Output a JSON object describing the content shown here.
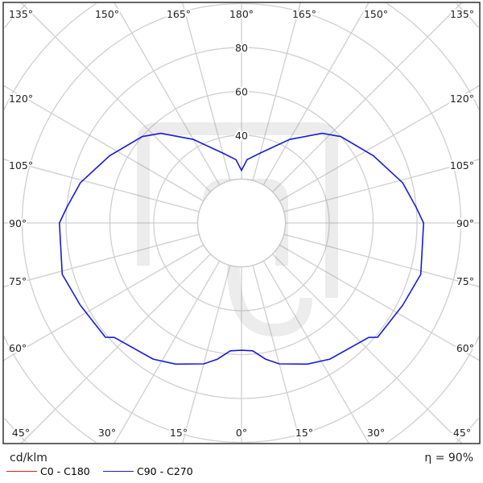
{
  "chart_data": {
    "type": "polar-line",
    "unit_label": "cd/klm",
    "efficiency_label": "η = 90%",
    "radial_ticks": [
      40,
      60,
      80
    ],
    "radial_grid": [
      20,
      40,
      60,
      80,
      100,
      120,
      140
    ],
    "angle_step_deg": 15,
    "top_labels": [
      "135°",
      "150°",
      "165°",
      "180°",
      "165°",
      "150°",
      "135°"
    ],
    "bottom_labels": [
      "45°",
      "30°",
      "15°",
      "0°",
      "15°",
      "30°",
      "45°"
    ],
    "left_labels": [
      "120°",
      "105°",
      "90°",
      "75°",
      "60°"
    ],
    "right_labels": [
      "120°",
      "105°",
      "90°",
      "75°",
      "60°"
    ],
    "legend": [
      {
        "name": "C0 - C180",
        "color": "#e02020"
      },
      {
        "name": "C90 - C270",
        "color": "#1a1adc"
      }
    ],
    "series": [
      {
        "name": "C90 - C270",
        "color": "#1a1adc",
        "gamma_deg": [
          0,
          5,
          10,
          15,
          25,
          33,
          48,
          50,
          63,
          74,
          90,
          95,
          104,
          117,
          131,
          138,
          150,
          165,
          175,
          180
        ],
        "values": [
          58,
          58.5,
          63,
          66.5,
          71,
          74,
          78,
          81,
          82.5,
          85,
          83,
          80,
          75.7,
          67.5,
          60,
          55,
          44,
          33,
          29,
          24
        ]
      }
    ]
  }
}
